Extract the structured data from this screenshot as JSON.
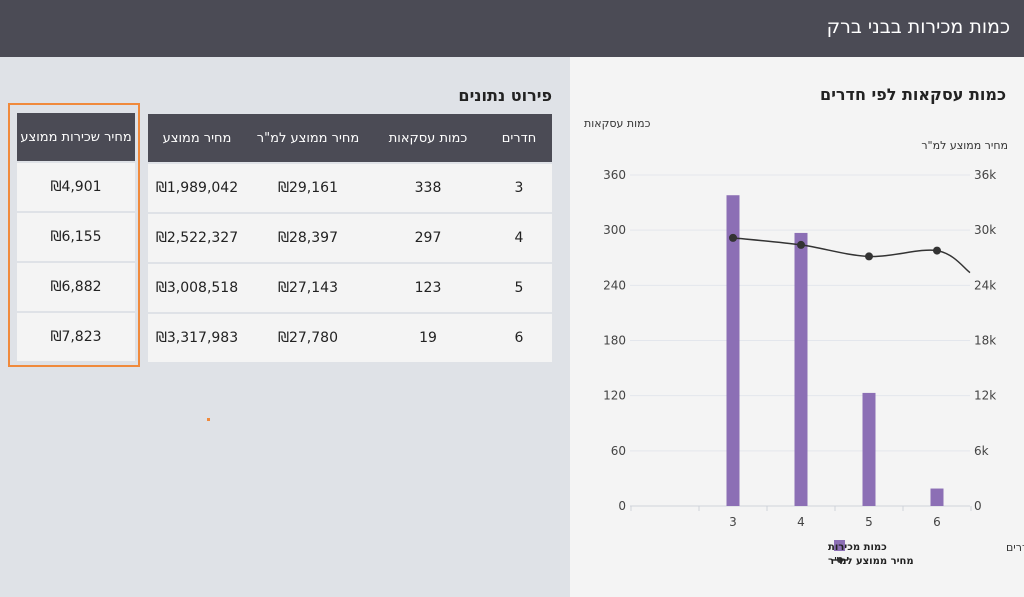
{
  "header": {
    "title": "כמות מכירות בבני ברק"
  },
  "chart_section": {
    "title": "כמות עסקאות לפי חדרים",
    "left_axis_caption": "כמות עסקאות",
    "right_axis_caption": "מחיר ממוצע למ\"ר",
    "x_caption": "חדרים"
  },
  "chart_data": {
    "type": "bar",
    "categories": [
      "3",
      "4",
      "5",
      "6"
    ],
    "series": [
      {
        "name": "כמות מכירות",
        "type": "bar",
        "axis": "left",
        "color": "#8c6fb5",
        "values": [
          338,
          297,
          123,
          19
        ]
      },
      {
        "name": "מחיר ממוצע למ\"ר",
        "type": "line",
        "axis": "right",
        "color": "#333333",
        "values": [
          29161,
          28397,
          27143,
          27780
        ]
      }
    ],
    "ylim_left": [
      0,
      360
    ],
    "yticks_left": [
      "0",
      "60",
      "120",
      "180",
      "240",
      "300",
      "360"
    ],
    "ylim_right": [
      0,
      36000
    ],
    "yticks_right": [
      "0",
      "6k",
      "12k",
      "18k",
      "24k",
      "30k",
      "36k"
    ],
    "grid": true,
    "legend_placement": "bottom"
  },
  "table": {
    "title": "פירוט נתונים",
    "headers": {
      "rooms": "חדרים",
      "count": "כמות עסקאות",
      "sqm": "מחיר ממוצע למ\"ר",
      "price": "מחיר ממוצע"
    },
    "rows": [
      {
        "rooms": "3",
        "count": "338",
        "sqm": "₪29,161",
        "price": "₪1,989,042"
      },
      {
        "rooms": "4",
        "count": "297",
        "sqm": "₪28,397",
        "price": "₪2,522,327"
      },
      {
        "rooms": "5",
        "count": "123",
        "sqm": "₪27,143",
        "price": "₪3,008,518"
      },
      {
        "rooms": "6",
        "count": "19",
        "sqm": "₪27,780",
        "price": "₪3,317,983"
      }
    ]
  },
  "rent": {
    "header": "מחיר שכירות ממוצע",
    "values": [
      "₪4,901",
      "₪6,155",
      "₪6,882",
      "₪7,823"
    ],
    "highlight_color": "#f08a3c"
  }
}
